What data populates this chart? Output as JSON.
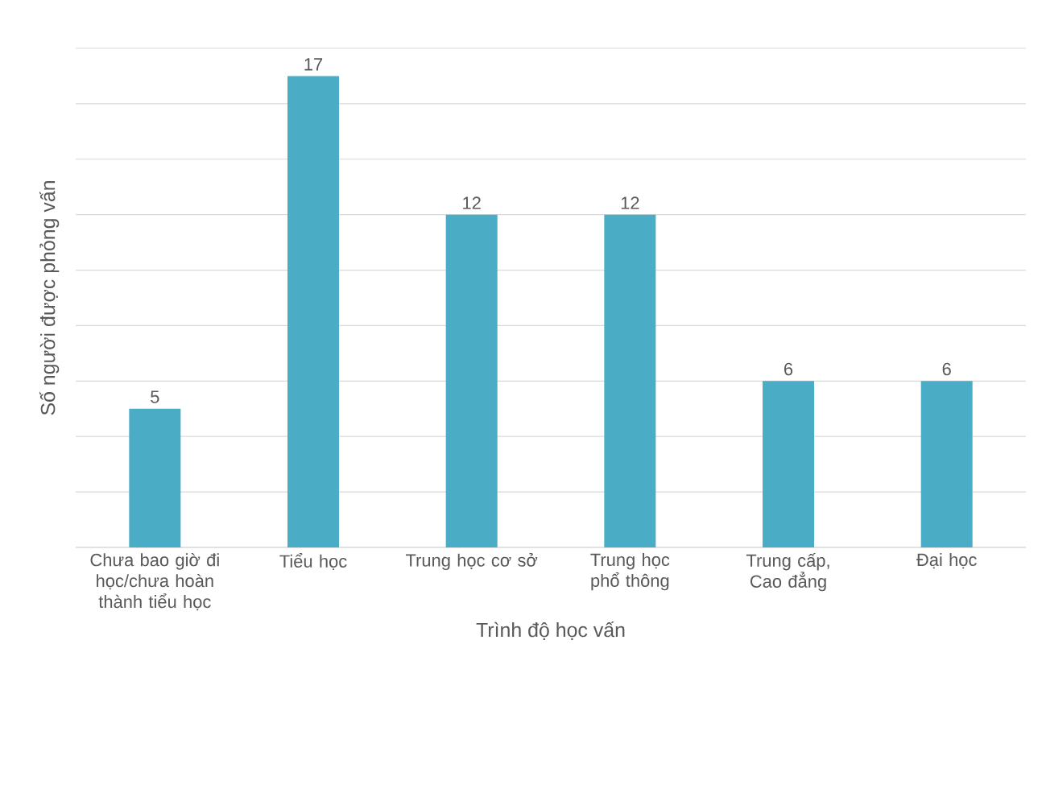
{
  "chart_data": {
    "type": "bar",
    "xlabel": "Trình độ học vấn",
    "ylabel": "Số người được phỏng vấn",
    "categories": [
      "Chưa bao giờ đi học/chưa hoàn thành tiểu học",
      "Tiểu học",
      "Trung học cơ sở",
      "Trung học phổ thông",
      "Trung cấp, Cao đẳng",
      "Đại học"
    ],
    "values": [
      5,
      17,
      12,
      12,
      6,
      6
    ],
    "color": "#4bacc6",
    "ylim": [
      0,
      18
    ],
    "yticks": [
      {
        "value": 0,
        "label": null
      },
      {
        "value": 2,
        "label": null
      },
      {
        "value": 4,
        "label": null
      },
      {
        "value": 6,
        "label": null
      },
      {
        "value": 8,
        "label": null
      },
      {
        "value": 10,
        "label": null
      },
      {
        "value": 12,
        "label": null
      },
      {
        "value": 14,
        "label": null
      },
      {
        "value": 16,
        "label": null
      },
      {
        "value": 18,
        "label": null
      }
    ],
    "grid": "y",
    "tick_labels": "x",
    "data_labels": true
  }
}
